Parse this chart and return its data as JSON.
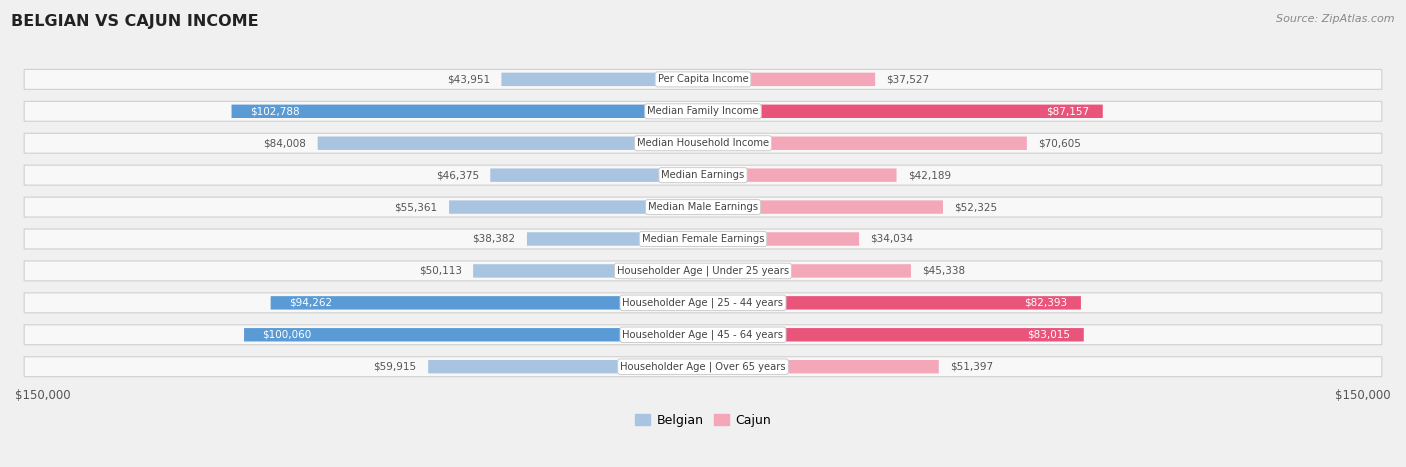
{
  "title": "BELGIAN VS CAJUN INCOME",
  "source": "Source: ZipAtlas.com",
  "categories": [
    "Per Capita Income",
    "Median Family Income",
    "Median Household Income",
    "Median Earnings",
    "Median Male Earnings",
    "Median Female Earnings",
    "Householder Age | Under 25 years",
    "Householder Age | 25 - 44 years",
    "Householder Age | 45 - 64 years",
    "Householder Age | Over 65 years"
  ],
  "belgian_values": [
    43951,
    102788,
    84008,
    46375,
    55361,
    38382,
    50113,
    94262,
    100060,
    59915
  ],
  "cajun_values": [
    37527,
    87157,
    70605,
    42189,
    52325,
    34034,
    45338,
    82393,
    83015,
    51397
  ],
  "belgian_labels": [
    "$43,951",
    "$102,788",
    "$84,008",
    "$46,375",
    "$55,361",
    "$38,382",
    "$50,113",
    "$94,262",
    "$100,060",
    "$59,915"
  ],
  "cajun_labels": [
    "$37,527",
    "$87,157",
    "$70,605",
    "$42,189",
    "$52,325",
    "$34,034",
    "$45,338",
    "$82,393",
    "$83,015",
    "$51,397"
  ],
  "max_value": 150000,
  "belgian_color_normal": "#a8c4e0",
  "belgian_color_highlight": "#5b9bd5",
  "cajun_color_normal": "#f4a7b9",
  "cajun_color_highlight": "#e8547a",
  "belgian_highlight": [
    1,
    7,
    8
  ],
  "cajun_highlight": [
    1,
    7,
    8
  ],
  "background_color": "#f0f0f0",
  "row_bg_color": "#f8f8f8",
  "x_axis_label_left": "$150,000",
  "x_axis_label_right": "$150,000",
  "legend_belgian": "Belgian",
  "legend_cajun": "Cajun"
}
